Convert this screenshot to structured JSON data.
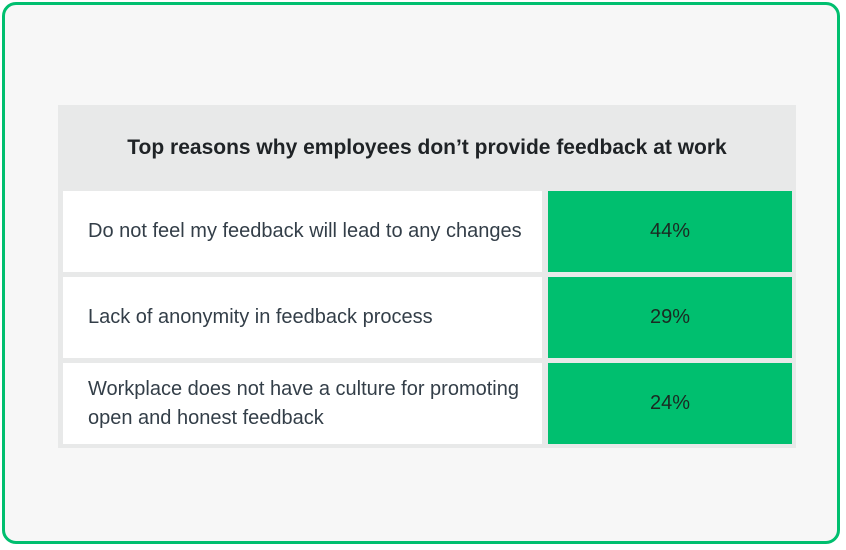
{
  "colors": {
    "accent": "#00bf6f",
    "table_background": "#e8e9e9",
    "card_background": "#f7f7f7"
  },
  "chart_data": {
    "type": "table",
    "title": "Top reasons why employees don’t provide feedback at work",
    "rows": [
      {
        "label": "Do not feel my feedback will lead to any changes",
        "value": 44,
        "display": "44%"
      },
      {
        "label": "Lack of anonymity in feedback process",
        "value": 29,
        "display": "29%"
      },
      {
        "label": "Workplace does not have a culture for promoting open and honest feedback",
        "value": 24,
        "display": "24%"
      }
    ]
  }
}
